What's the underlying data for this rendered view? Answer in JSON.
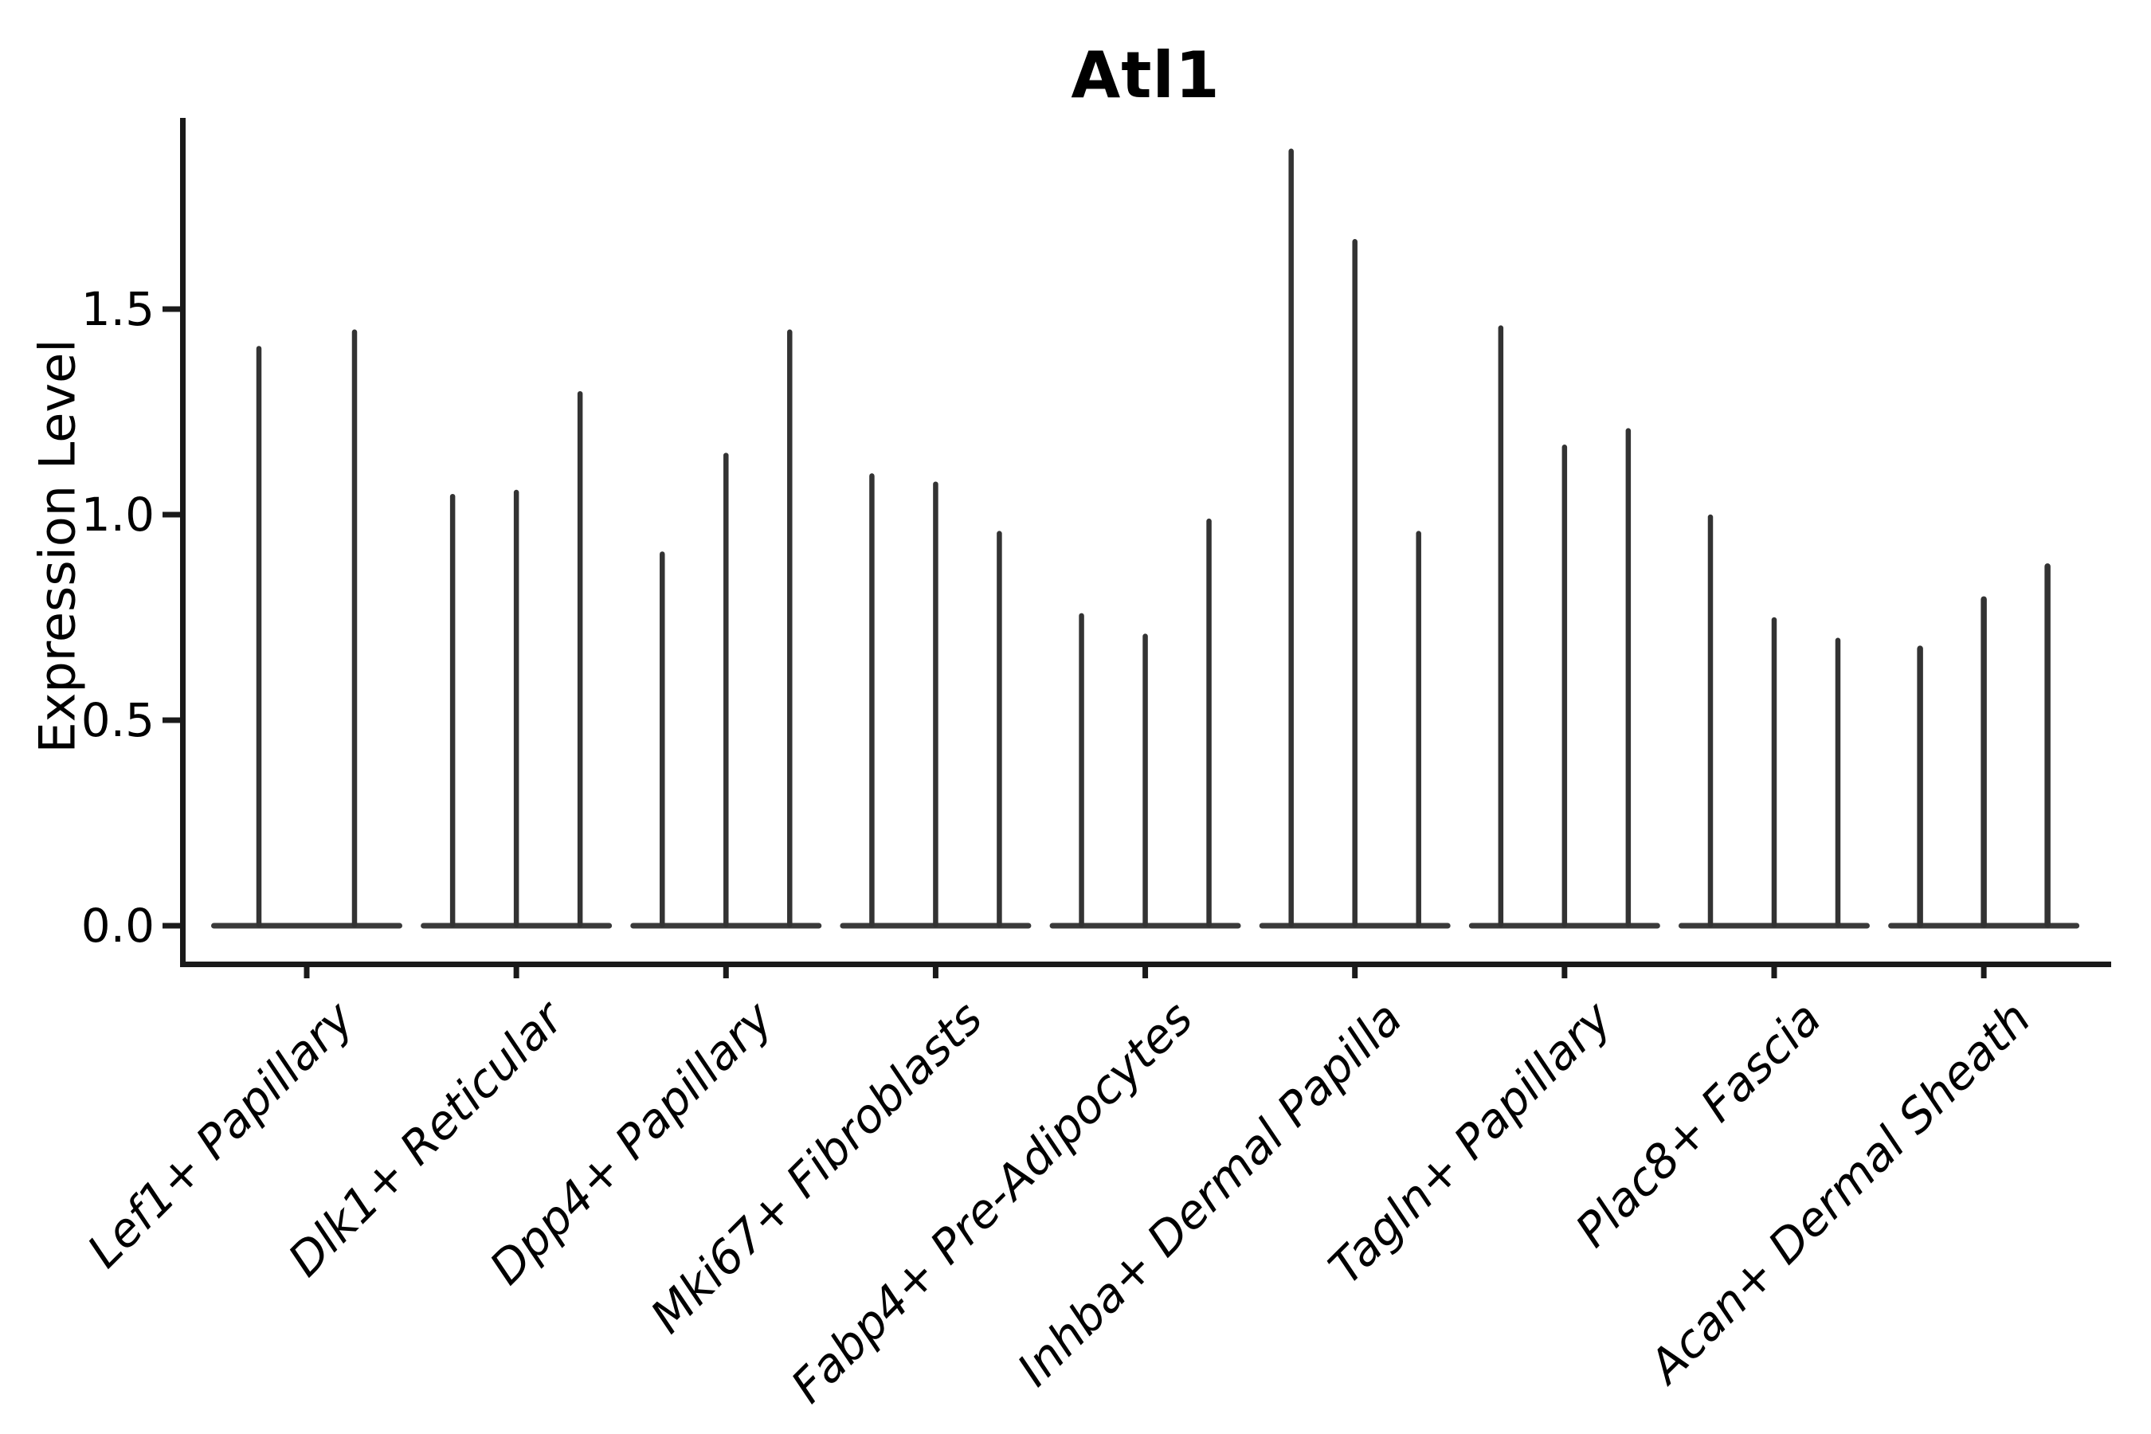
{
  "chart_data": {
    "type": "violin",
    "title": "Atl1",
    "xlabel": "",
    "ylabel": "Expression Level",
    "ylim": [
      0,
      1.97
    ],
    "ytick_labels": [
      "0.0",
      "0.5",
      "1.0",
      "1.5"
    ],
    "grid": false,
    "legend": "none",
    "violin_style": "needle (dense mass at 0 with thin tail up to maximum)",
    "categories": [
      "Lef1+ Papillary",
      "Dlk1+ Reticular",
      "Dpp4+ Papillary",
      "Mki67+ Fibroblasts",
      "Fabp4+ Pre-Adipocytes",
      "Inhba+ Dermal Papilla",
      "Tagln+ Papillary",
      "Plac8+ Fascia",
      "Acan+ Dermal Sheath"
    ],
    "groups": [
      {
        "category": "Lef1+ Papillary",
        "violin_maxima": [
          1.41,
          1.45
        ]
      },
      {
        "category": "Dlk1+ Reticular",
        "violin_maxima": [
          1.05,
          1.06,
          1.3
        ]
      },
      {
        "category": "Dpp4+ Papillary",
        "violin_maxima": [
          0.91,
          1.15,
          1.45
        ]
      },
      {
        "category": "Mki67+ Fibroblasts",
        "violin_maxima": [
          1.1,
          1.08,
          0.96
        ]
      },
      {
        "category": "Fabp4+ Pre-Adipocytes",
        "violin_maxima": [
          0.76,
          0.71,
          0.99
        ]
      },
      {
        "category": "Inhba+ Dermal Papilla",
        "violin_maxima": [
          1.89,
          1.67,
          0.96
        ]
      },
      {
        "category": "Tagln+ Papillary",
        "violin_maxima": [
          1.46,
          1.17,
          1.21
        ]
      },
      {
        "category": "Plac8+ Fascia",
        "violin_maxima": [
          1.0,
          0.75,
          0.7
        ]
      },
      {
        "category": "Acan+ Dermal Sheath",
        "violin_maxima": [
          0.68,
          0.8,
          0.88
        ]
      }
    ],
    "colors": {
      "violin": "#333333",
      "violin_base": "#3a3a3a",
      "axis": "#1a1a1a",
      "text": "#000000",
      "background": "#ffffff"
    }
  }
}
